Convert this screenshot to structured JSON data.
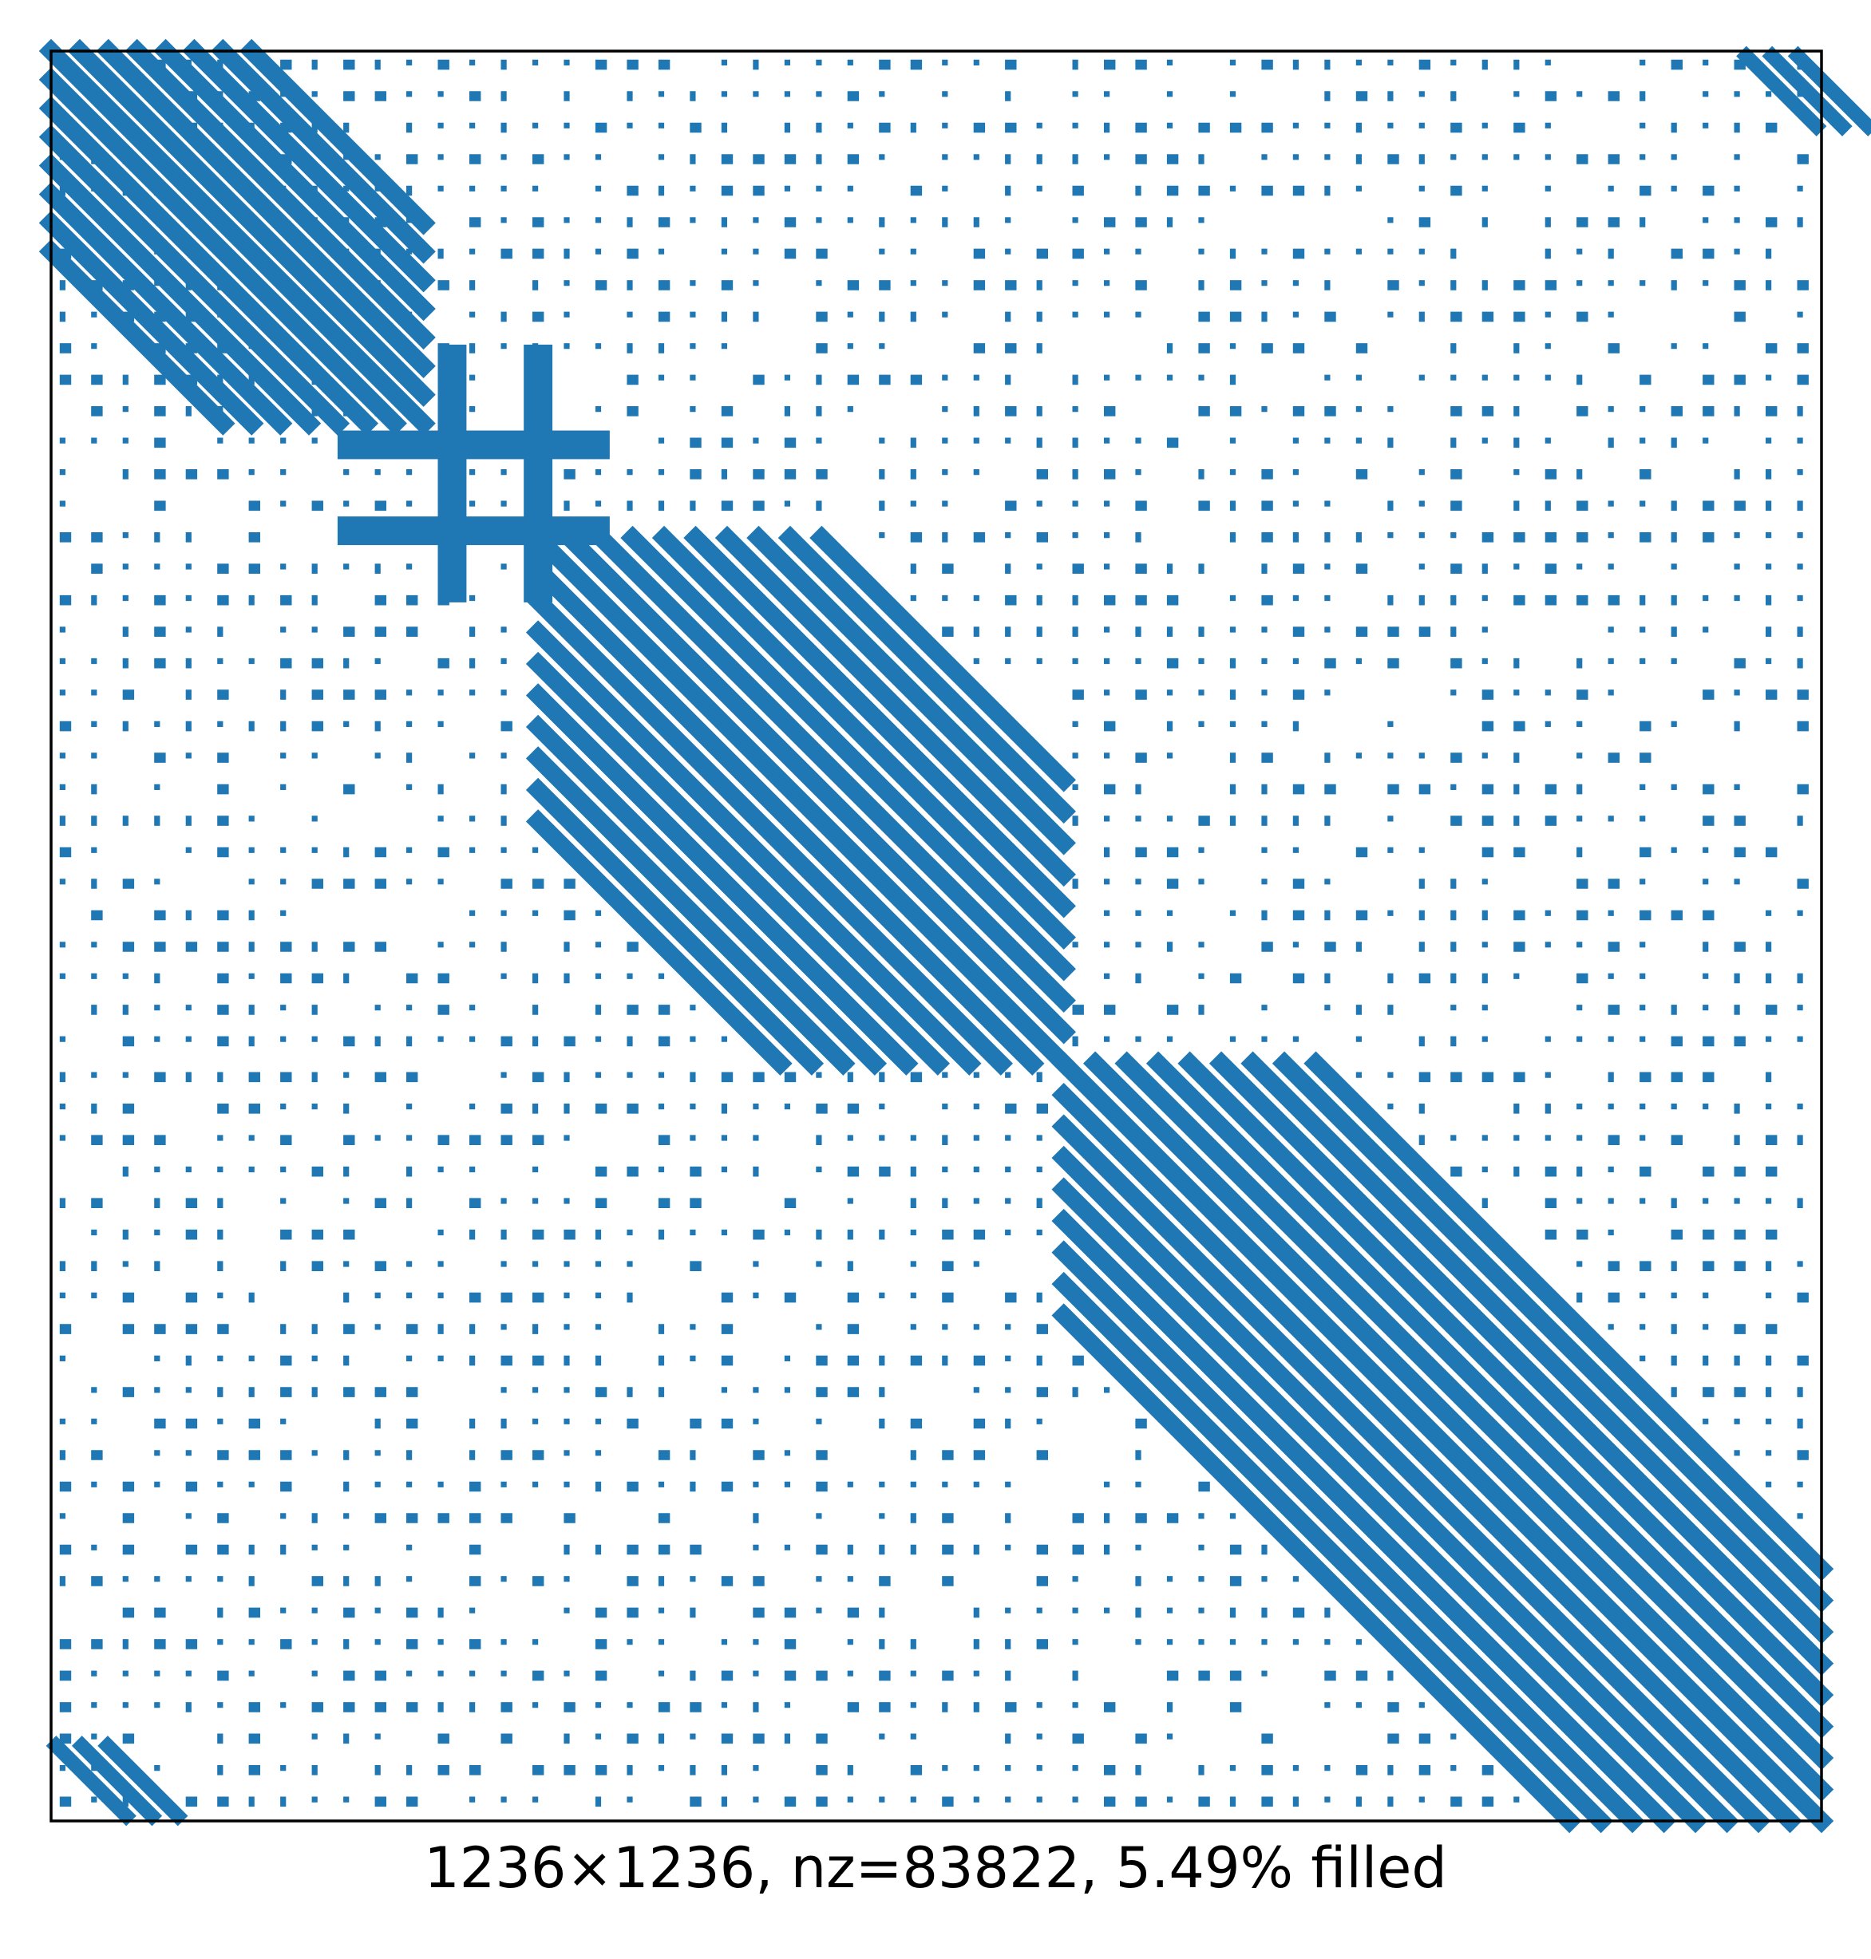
{
  "chart_data": {
    "type": "spy",
    "title": "",
    "xlabel": "1236×1236, nz=83822, 5.49% filled",
    "ylabel": "",
    "matrix_size": [
      1236,
      1236
    ],
    "nnz": 83822,
    "fill_percent": "5.49%",
    "ticks_shown": false,
    "grid": false,
    "color": "#1f77b4",
    "frame_color": "#000000",
    "diagonal_bands": [
      {
        "rows": [
          0,
          260
        ],
        "offsets": [
          0,
          20,
          40,
          60,
          80,
          100,
          120,
          140
        ],
        "width": 12
      },
      {
        "rows": [
          340,
          707
        ],
        "offsets": [
          0,
          22,
          44,
          66,
          88,
          110,
          132,
          154,
          176,
          198
        ],
        "width": 12
      },
      {
        "rows": [
          707,
          1236
        ],
        "offsets": [
          0,
          22,
          44,
          66,
          88,
          110,
          132,
          154,
          176
        ],
        "width": 12
      }
    ],
    "dense_blocks": [
      {
        "row_range": [
          205,
          385
        ],
        "col_range": [
          270,
          290
        ]
      },
      {
        "row_range": [
          205,
          385
        ],
        "col_range": [
          330,
          350
        ]
      },
      {
        "row_range": [
          265,
          285
        ],
        "col_range": [
          200,
          390
        ]
      },
      {
        "row_range": [
          325,
          345
        ],
        "col_range": [
          200,
          390
        ]
      }
    ],
    "scatter_regions": [
      {
        "row_range": [
          0,
          707
        ],
        "col_range": [
          0,
          707
        ],
        "spacing": 22
      },
      {
        "row_range": [
          0,
          707
        ],
        "col_range": [
          707,
          1236
        ],
        "spacing": 22
      },
      {
        "row_range": [
          707,
          1236
        ],
        "col_range": [
          0,
          707
        ],
        "spacing": 22
      },
      {
        "row_range": [
          707,
          1236
        ],
        "col_range": [
          707,
          1236
        ],
        "spacing": 22
      }
    ]
  }
}
